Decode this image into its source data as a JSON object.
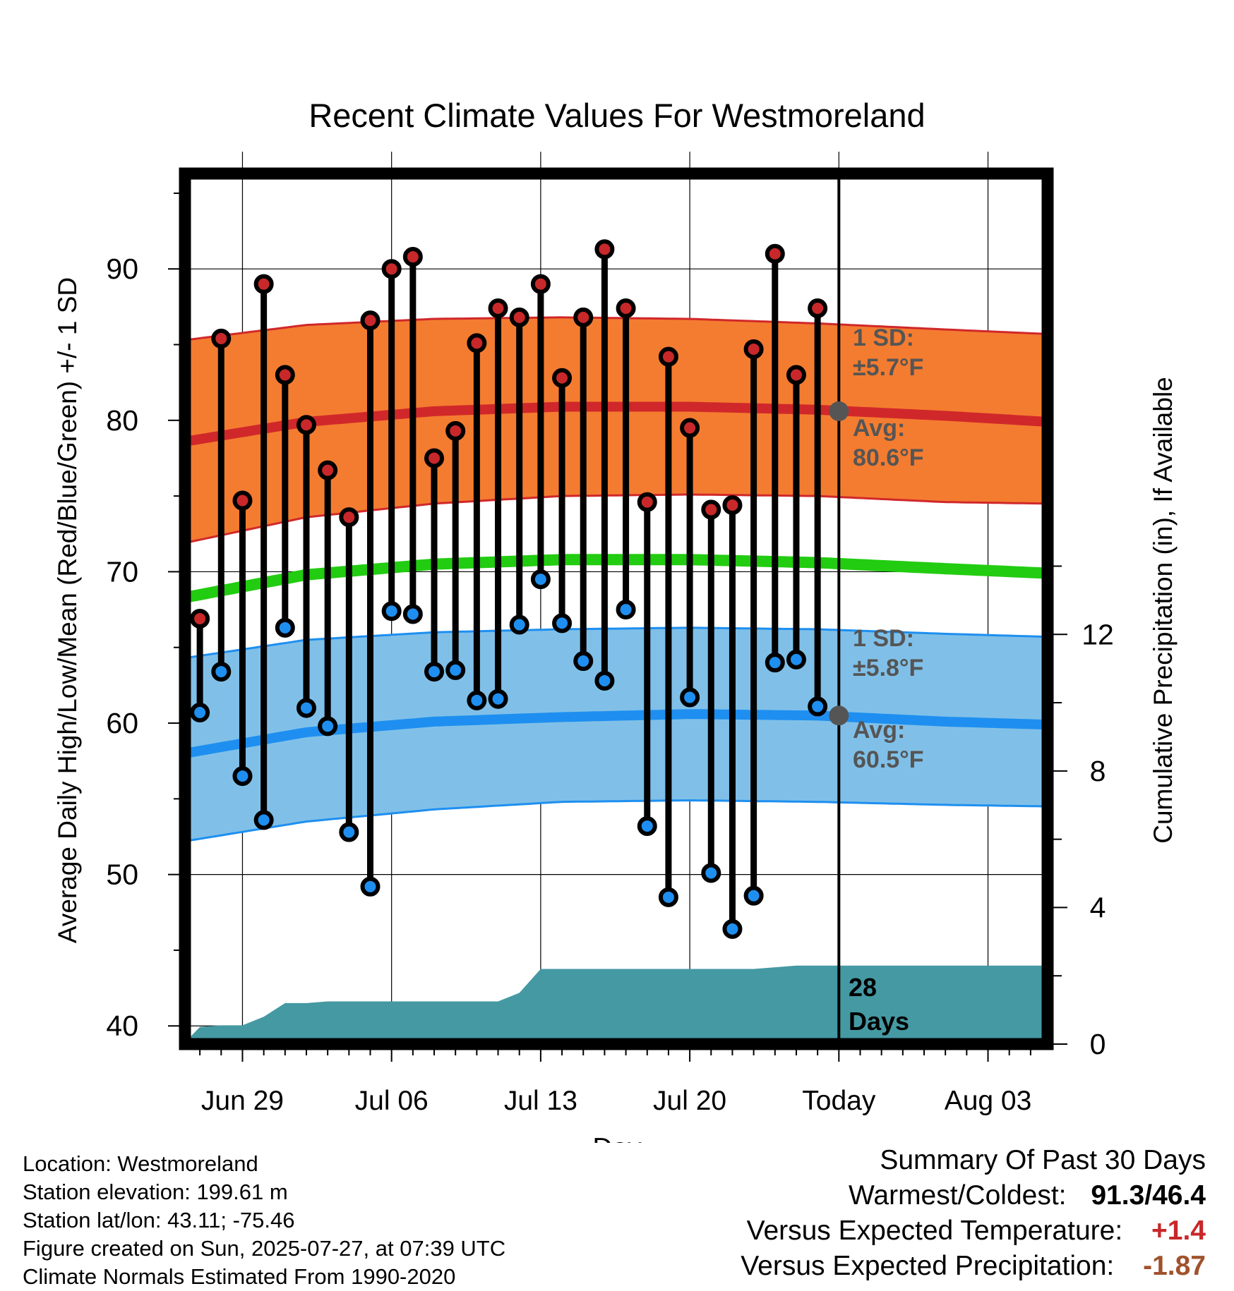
{
  "chart_data": {
    "type": "line",
    "title": "Recent Climate Values For Westmoreland",
    "xlabel": "Day",
    "ylabel": "Average Daily High/Low/Mean (Red/Blue/Green) +/- 1 SD",
    "y2label": "Cumulative Precipitation (in), If Available",
    "ylim": [
      38.8,
      96.3
    ],
    "y2lim": [
      0,
      25.5
    ],
    "yticks": [
      "40",
      "50",
      "60",
      "70",
      "80",
      "90"
    ],
    "y2ticks": [
      "0",
      "4",
      "8",
      "12"
    ],
    "x_ticks": [
      "Jun 29",
      "Jul 06",
      "Jul 13",
      "Jul 20",
      "Today",
      "Aug 03"
    ],
    "x_tick_days": [
      3,
      10,
      17,
      24,
      31,
      38
    ],
    "xlim": [
      0.3,
      40.8
    ],
    "today_day": 31,
    "days": [
      1,
      2,
      3,
      4,
      5,
      6,
      7,
      8,
      9,
      10,
      11,
      12,
      13,
      14,
      15,
      16,
      17,
      18,
      19,
      20,
      21,
      22,
      23,
      24,
      25,
      26,
      27,
      28,
      29,
      30
    ],
    "daily_highs": [
      66.9,
      85.4,
      74.7,
      89.0,
      83.0,
      79.7,
      76.7,
      73.6,
      86.6,
      90.0,
      90.8,
      77.5,
      79.3,
      85.1,
      87.4,
      86.8,
      89.0,
      82.8,
      86.8,
      91.3,
      87.4,
      74.6,
      84.2,
      79.5,
      74.1,
      74.4,
      84.7,
      91.0,
      83.0,
      87.4
    ],
    "daily_lows": [
      60.7,
      63.4,
      56.5,
      53.6,
      66.3,
      61.0,
      59.8,
      52.8,
      49.2,
      67.4,
      67.2,
      63.4,
      63.5,
      61.5,
      61.6,
      66.5,
      69.5,
      66.6,
      64.1,
      62.8,
      67.5,
      53.2,
      48.5,
      61.7,
      50.1,
      46.4,
      48.6,
      64.0,
      64.2,
      61.1
    ],
    "normal_days": [
      0.3,
      6,
      12,
      18,
      24,
      30,
      36,
      40.8
    ],
    "normal_high": [
      78.6,
      79.9,
      80.6,
      80.9,
      80.9,
      80.7,
      80.3,
      79.9
    ],
    "normal_high_upper": [
      85.3,
      86.3,
      86.7,
      86.8,
      86.7,
      86.4,
      86.0,
      85.7
    ],
    "normal_high_lower": [
      71.9,
      73.6,
      74.5,
      75.0,
      75.1,
      75.0,
      74.6,
      74.5
    ],
    "normal_mean": [
      68.3,
      69.8,
      70.5,
      70.8,
      70.8,
      70.6,
      70.2,
      69.9
    ],
    "normal_low": [
      58.0,
      59.4,
      60.1,
      60.4,
      60.6,
      60.5,
      60.1,
      59.9
    ],
    "normal_low_upper": [
      64.3,
      65.5,
      66.0,
      66.2,
      66.3,
      66.2,
      65.9,
      65.7
    ],
    "normal_low_lower": [
      52.2,
      53.5,
      54.3,
      54.8,
      54.9,
      54.8,
      54.6,
      54.5
    ],
    "precip_days": [
      0.3,
      1,
      2,
      3,
      4,
      5,
      6,
      7,
      8,
      9,
      10,
      11,
      12,
      13,
      14,
      15,
      16,
      17,
      18,
      19,
      20,
      21,
      22,
      23,
      24,
      25,
      26,
      27,
      28,
      29,
      30,
      31,
      40.8
    ],
    "precip_cum": [
      0.05,
      0.5,
      0.55,
      0.55,
      0.8,
      1.2,
      1.2,
      1.25,
      1.25,
      1.25,
      1.25,
      1.25,
      1.25,
      1.25,
      1.25,
      1.25,
      1.5,
      2.2,
      2.2,
      2.2,
      2.2,
      2.2,
      2.2,
      2.2,
      2.2,
      2.2,
      2.2,
      2.2,
      2.25,
      2.3,
      2.3,
      2.3,
      2.3
    ],
    "annotations": {
      "high_sd_label": "1 SD:",
      "high_sd_value": "±5.7°F",
      "high_avg_label": "Avg:",
      "high_avg_value": "80.6°F",
      "low_sd_label": "1 SD:",
      "low_sd_value": "±5.8°F",
      "low_avg_label": "Avg:",
      "low_avg_value": "60.5°F",
      "days_count": "28",
      "days_word": "Days"
    },
    "colors": {
      "high_marker": "#c8282a",
      "low_marker": "#1e8ff0",
      "high_band": "#f47c30",
      "high_line": "#d0282a",
      "low_band": "#80c0e8",
      "low_line": "#1e8ff0",
      "mean_line": "#22cc11",
      "precip": "#4599a3",
      "annotation": "#555555"
    }
  },
  "footer": {
    "location": "Location: Westmoreland",
    "elevation": "Station elevation: 199.61 m",
    "latlon": "Station lat/lon: 43.11; -75.46",
    "created": "Figure created on Sun, 2025-07-27, at 07:39 UTC",
    "normals": "Climate Normals Estimated From 1990-2020"
  },
  "summary": {
    "heading": "Summary Of Past 30 Days",
    "warm_cold_label": "Warmest/Coldest:",
    "warm_value": "91.3",
    "slash": "/",
    "cold_value": "46.4",
    "temp_label": "Versus Expected Temperature:",
    "temp_value": "+1.4",
    "temp_color": "#c8282a",
    "precip_label": "Versus Expected Precipitation:",
    "precip_value": "-1.87",
    "precip_color": "#a0522d"
  }
}
